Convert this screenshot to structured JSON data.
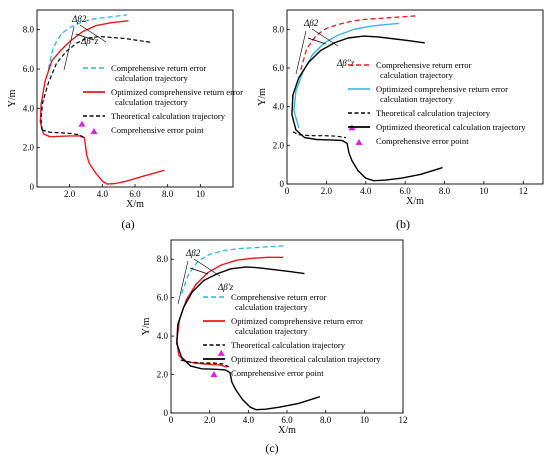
{
  "colors": {
    "comp_return": "#29b6e6",
    "opt_comp": "#e8191c",
    "theory": "#000000",
    "opt_theory": "#000000",
    "comp_dash_red": "#e8191c",
    "error_point": "#e020e0"
  },
  "chart_data": [
    {
      "panel_label": "(a)",
      "type": "line",
      "xlabel": "X/m",
      "ylabel": "Y/m",
      "xlim": [
        0,
        12
      ],
      "ylim": [
        0,
        9
      ],
      "xticks": [
        "2.0",
        "4.0",
        "6.0",
        "8.0",
        "10"
      ],
      "yticks": [
        "0",
        "2.0",
        "4.0",
        "6.0",
        "8.0"
      ],
      "annotations": [
        "Δβ2",
        "Δβ''z"
      ],
      "series": [
        {
          "name": "Comprehensive return error calculation trajectory",
          "style": "comp_return",
          "x": [
            0.7,
            1.0,
            1.5,
            2.0,
            2.5,
            3.0,
            3.5,
            4.0,
            4.5,
            5.0,
            5.5
          ],
          "y": [
            6.0,
            7.1,
            7.8,
            8.1,
            8.3,
            8.45,
            8.55,
            8.6,
            8.65,
            8.7,
            8.75
          ]
        },
        {
          "name": "Optimized comprehensive return error calculation trajectory",
          "style": "opt_comp",
          "x": [
            7.8,
            6.5,
            5.5,
            4.8,
            4.3,
            4.0,
            3.6,
            3.2,
            3.05,
            2.95,
            2.9,
            2.6,
            2.0,
            1.4,
            0.8,
            0.4,
            0.2,
            0.25,
            0.5,
            0.9,
            1.4,
            2.0,
            2.8,
            3.6,
            4.5,
            5.6
          ],
          "y": [
            0.85,
            0.55,
            0.3,
            0.18,
            0.15,
            0.3,
            0.7,
            1.2,
            1.6,
            2.2,
            2.5,
            2.6,
            2.6,
            2.58,
            2.55,
            2.7,
            3.3,
            4.2,
            5.4,
            6.4,
            6.9,
            7.4,
            7.9,
            8.2,
            8.35,
            8.45
          ]
        },
        {
          "name": "Theoretical calculation trajectory",
          "style": "theory",
          "x": [
            0.3,
            0.25,
            0.35,
            0.7,
            1.2,
            1.8,
            2.4,
            3.0,
            3.8,
            4.6,
            5.4,
            6.2,
            7.0
          ],
          "y": [
            2.9,
            3.5,
            4.3,
            5.3,
            6.3,
            6.9,
            7.3,
            7.55,
            7.65,
            7.6,
            7.55,
            7.45,
            7.35
          ]
        },
        {
          "name": "",
          "style": "theory",
          "x": [
            0.3,
            0.8,
            1.5,
            2.1,
            2.6,
            2.9
          ],
          "y": [
            2.9,
            2.78,
            2.75,
            2.72,
            2.65,
            2.5
          ]
        }
      ],
      "points": [
        {
          "name": "Comprehensive error point",
          "x": [
            2.75
          ],
          "y": [
            3.2
          ]
        }
      ]
    },
    {
      "panel_label": "(b)",
      "type": "line",
      "xlabel": "X/m",
      "ylabel": "Y/m",
      "xlim": [
        0,
        13
      ],
      "ylim": [
        0,
        9
      ],
      "xticks": [
        "0",
        "2.0",
        "4.0",
        "6.0",
        "8.0",
        "10",
        "12"
      ],
      "yticks": [
        "0",
        "2.0",
        "4.0",
        "6.0",
        "8.0"
      ],
      "annotations": [
        "Δβ2",
        "Δβ''z"
      ],
      "series": [
        {
          "name": "Comprehensive return error calculation trajectory",
          "style": "comp_dash_red",
          "x": [
            0.7,
            1.0,
            1.5,
            2.0,
            2.6,
            3.2,
            3.8,
            4.5,
            5.2,
            5.9,
            6.6
          ],
          "y": [
            5.9,
            7.0,
            7.7,
            8.05,
            8.25,
            8.4,
            8.5,
            8.55,
            8.6,
            8.65,
            8.7
          ]
        },
        {
          "name": "Optimized comprehensive return error calculation trajectory",
          "style": "comp_return",
          "x": [
            0.6,
            0.35,
            0.45,
            0.8,
            1.3,
            1.9,
            2.6,
            3.4,
            4.2,
            5.0,
            5.7
          ],
          "y": [
            2.9,
            3.8,
            4.8,
            5.8,
            6.7,
            7.3,
            7.7,
            8.0,
            8.15,
            8.25,
            8.3
          ]
        },
        {
          "name": "Theoretical calculation trajectory",
          "style": "theory",
          "x": [
            0.3,
            0.6,
            1.2,
            1.9,
            2.5,
            3.0
          ],
          "y": [
            2.7,
            2.55,
            2.5,
            2.5,
            2.48,
            2.4
          ]
        },
        {
          "name": "Optimized theoretical calculation trajectory",
          "style": "opt_theory",
          "x": [
            7.9,
            6.8,
            5.8,
            5.0,
            4.4,
            4.0,
            3.6,
            3.3,
            3.15,
            3.05,
            2.8,
            2.2,
            1.5,
            0.9,
            0.45,
            0.25,
            0.3,
            0.6,
            1.1,
            1.7,
            2.4,
            3.1,
            3.9,
            4.7,
            5.5,
            6.3,
            7.0
          ],
          "y": [
            0.85,
            0.5,
            0.3,
            0.2,
            0.17,
            0.3,
            0.7,
            1.2,
            1.6,
            2.1,
            2.25,
            2.28,
            2.3,
            2.4,
            2.8,
            3.6,
            4.6,
            5.5,
            6.3,
            6.9,
            7.3,
            7.55,
            7.65,
            7.6,
            7.5,
            7.4,
            7.3
          ]
        }
      ],
      "points": [
        {
          "name": "Comprehensive error point",
          "x": [
            3.3
          ],
          "y": [
            2.9
          ]
        }
      ]
    },
    {
      "panel_label": "(c)",
      "type": "line",
      "xlabel": "X/m",
      "ylabel": "Y/m",
      "xlim": [
        0,
        12
      ],
      "ylim": [
        0,
        9
      ],
      "xticks": [
        "0",
        "2.0",
        "4.0",
        "6.0",
        "8.0",
        "10",
        "12"
      ],
      "yticks": [
        "0",
        "2.0",
        "4.0",
        "6.0",
        "8.0"
      ],
      "annotations": [
        "Δβ2",
        "Δβ'z"
      ],
      "series": [
        {
          "name": "Comprehensive return error calculation trajectory",
          "style": "comp_return",
          "x": [
            0.55,
            0.9,
            1.4,
            2.0,
            2.7,
            3.5,
            4.3,
            5.1,
            5.9
          ],
          "y": [
            6.2,
            7.2,
            7.9,
            8.25,
            8.45,
            8.55,
            8.6,
            8.65,
            8.7
          ]
        },
        {
          "name": "Optimized comprehensive return error calculation trajectory",
          "style": "opt_comp",
          "x": [
            2.9,
            2.5,
            1.8,
            1.2,
            0.7,
            0.4,
            0.3,
            0.45,
            0.8,
            1.3,
            1.9,
            2.6,
            3.4,
            4.2,
            5.0,
            5.8
          ],
          "y": [
            2.4,
            2.5,
            2.55,
            2.6,
            2.7,
            3.0,
            3.8,
            4.9,
            5.9,
            6.7,
            7.3,
            7.7,
            7.95,
            8.05,
            8.1,
            8.1
          ]
        },
        {
          "name": "Theoretical calculation trajectory",
          "style": "theory",
          "x": [
            0.5,
            1.0,
            1.6,
            2.2,
            2.7,
            3.0
          ],
          "y": [
            2.75,
            2.65,
            2.6,
            2.6,
            2.55,
            2.4
          ]
        },
        {
          "name": "Optimized theoretical calculation trajectory",
          "style": "opt_theory",
          "x": [
            7.7,
            6.6,
            5.6,
            4.9,
            4.4,
            4.1,
            3.7,
            3.35,
            3.15,
            3.05,
            2.8,
            2.2,
            1.6,
            1.0,
            0.55,
            0.3,
            0.35,
            0.65,
            1.1,
            1.7,
            2.4,
            3.1,
            3.9,
            4.6,
            5.4,
            6.2,
            6.9
          ],
          "y": [
            0.85,
            0.5,
            0.3,
            0.2,
            0.17,
            0.3,
            0.7,
            1.2,
            1.6,
            2.1,
            2.25,
            2.28,
            2.3,
            2.45,
            2.9,
            3.6,
            4.6,
            5.5,
            6.3,
            6.9,
            7.25,
            7.5,
            7.6,
            7.55,
            7.45,
            7.35,
            7.25
          ]
        }
      ],
      "points": [
        {
          "name": "Comprehensive error point",
          "x": [
            2.6
          ],
          "y": [
            3.1
          ]
        }
      ]
    }
  ]
}
